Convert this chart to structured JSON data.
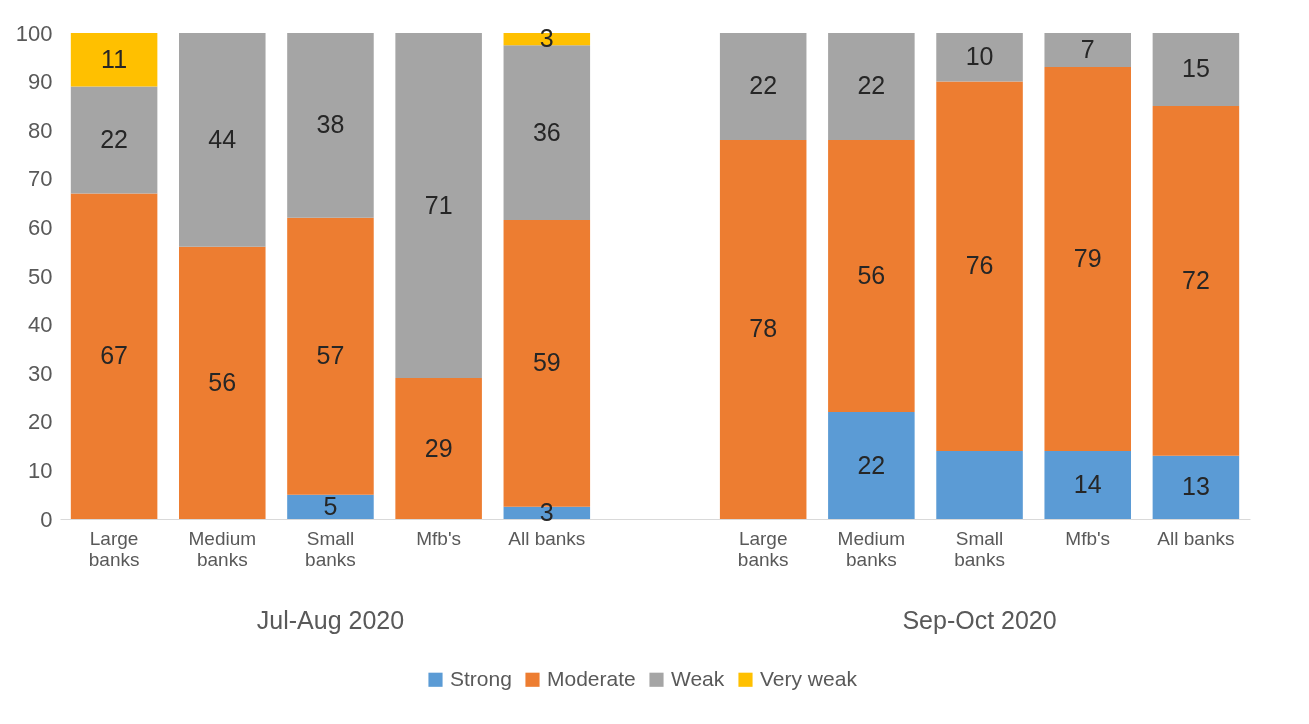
{
  "chart_data": {
    "type": "bar",
    "stacked": true,
    "categories": [
      "Large banks",
      "Medium banks",
      "Small banks",
      "Mfb's",
      "All banks",
      null,
      "Large banks",
      "Medium banks",
      "Small banks",
      "Mfb's",
      "All banks"
    ],
    "series": [
      {
        "name": "Strong",
        "color": "#5b9bd5",
        "values": [
          null,
          null,
          5,
          null,
          2.5,
          null,
          null,
          22,
          14,
          14,
          13
        ],
        "value_labels": [
          null,
          null,
          "5",
          null,
          "3",
          null,
          null,
          "22",
          null,
          "14",
          "13"
        ]
      },
      {
        "name": "Moderate",
        "color": "#ed7d31",
        "values": [
          67,
          56,
          57,
          29,
          59,
          null,
          78,
          56,
          76,
          79,
          72
        ],
        "value_labels": [
          "67",
          "56",
          "57",
          "29",
          "59",
          null,
          "78",
          "56",
          "76",
          "79",
          "72"
        ]
      },
      {
        "name": "Weak",
        "color": "#a5a5a5",
        "values": [
          22,
          44,
          38,
          71,
          36,
          null,
          22,
          22,
          10,
          7,
          15
        ],
        "value_labels": [
          "22",
          "44",
          "38",
          "71",
          "36",
          null,
          "22",
          "22",
          "10",
          "7",
          "15"
        ]
      },
      {
        "name": "Very weak",
        "color": "#ffc000",
        "values": [
          11,
          null,
          null,
          null,
          2.5,
          null,
          null,
          null,
          null,
          null,
          null
        ],
        "value_labels": [
          "11",
          null,
          null,
          null,
          "3",
          null,
          null,
          null,
          null,
          null,
          null
        ]
      }
    ],
    "annotations": [
      "Jul-Aug 2020",
      "Sep-Oct 2020"
    ],
    "ylim": [
      0,
      100
    ],
    "yticks": [
      0,
      10,
      20,
      30,
      40,
      50,
      60,
      70,
      80,
      90,
      100
    ],
    "grid": false,
    "legend": "bottom"
  }
}
